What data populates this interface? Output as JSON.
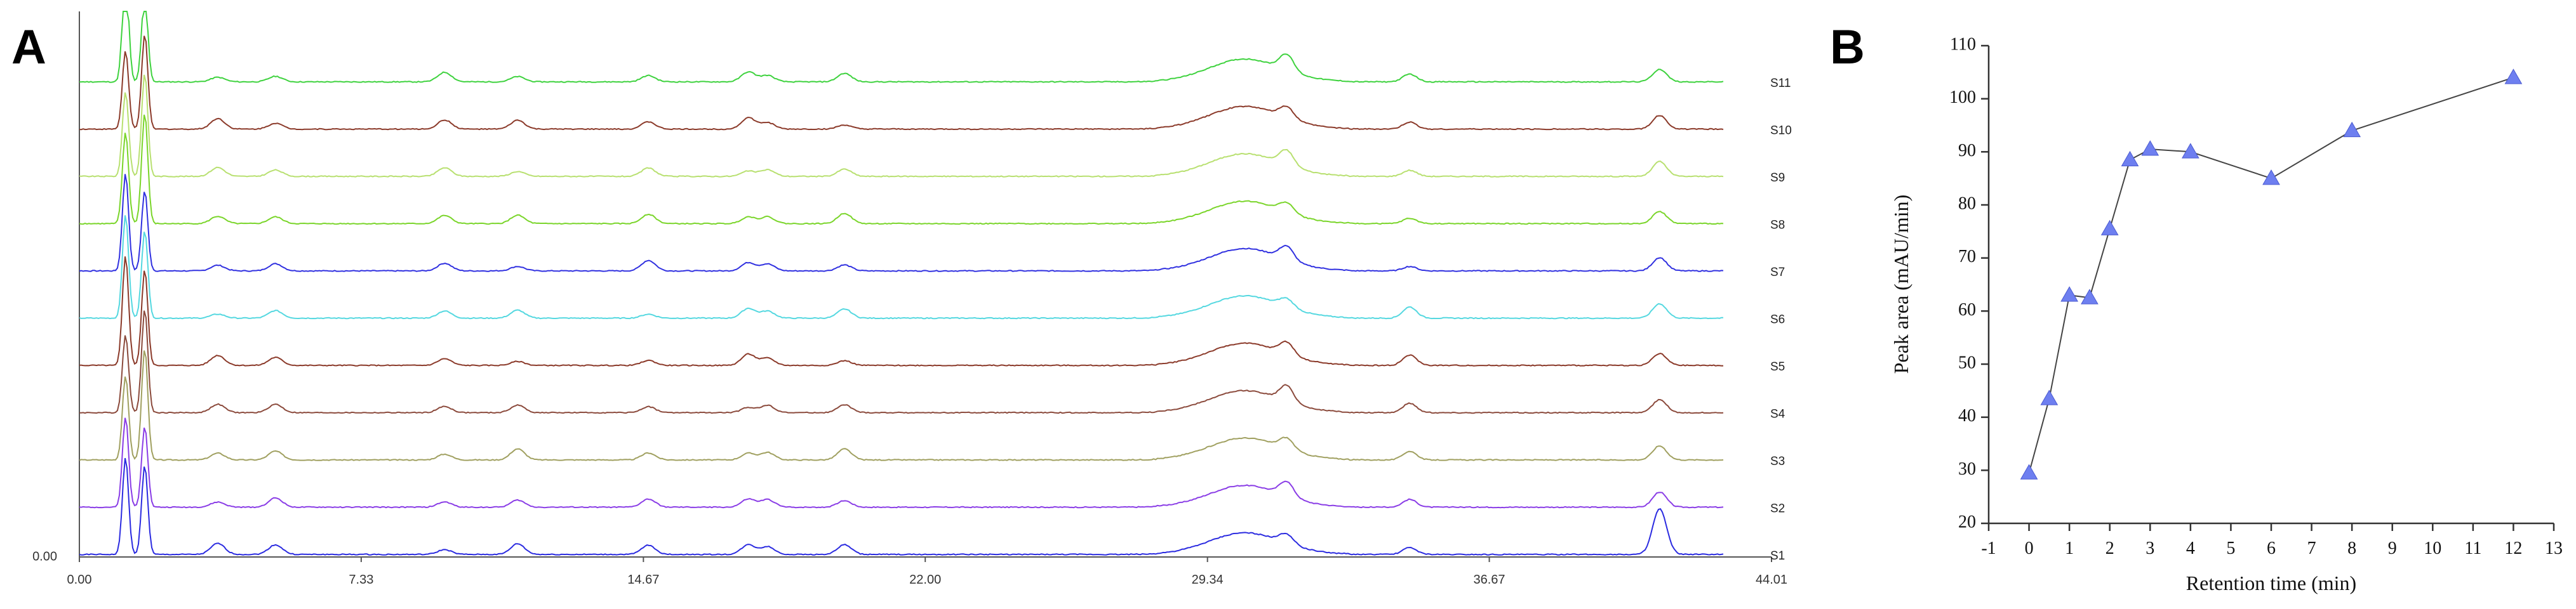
{
  "panels": [
    {
      "panel_label": "A",
      "chart_data": {
        "type": "line",
        "title": "",
        "xlabel": "",
        "ylabel": "",
        "x_ticks": [
          "0.00",
          "7.33",
          "14.67",
          "22.00",
          "29.34",
          "36.67",
          "44.01"
        ],
        "xlim": [
          0,
          44.01
        ],
        "y_tick_label": "0.00",
        "stacked": true,
        "series": [
          {
            "name": "S1",
            "color": "#2b2be0"
          },
          {
            "name": "S2",
            "color": "#8a3de6"
          },
          {
            "name": "S3",
            "color": "#a0a060"
          },
          {
            "name": "S4",
            "color": "#8b4a3c"
          },
          {
            "name": "S5",
            "color": "#8b3a2a"
          },
          {
            "name": "S6",
            "color": "#55d8e0"
          },
          {
            "name": "S7",
            "color": "#3030e0"
          },
          {
            "name": "S8",
            "color": "#7ad52a"
          },
          {
            "name": "S9",
            "color": "#b8e070"
          },
          {
            "name": "S10",
            "color": "#8b3a2a"
          },
          {
            "name": "S11",
            "color": "#3ed23e"
          }
        ],
        "major_peaks_min": [
          1.2,
          1.7,
          3.6,
          5.1,
          9.5,
          11.4,
          14.8,
          17.4,
          17.9,
          19.9,
          30.3,
          31.4,
          34.6,
          41.1
        ]
      }
    },
    {
      "panel_label": "B",
      "chart_data": {
        "type": "scatter",
        "title": "",
        "xlabel": "Retention time (min)",
        "ylabel": "Peak area (mAU/min)",
        "xlim": [
          -1,
          13
        ],
        "ylim": [
          20,
          110
        ],
        "x_ticks": [
          "-1",
          "0",
          "1",
          "2",
          "3",
          "4",
          "5",
          "6",
          "7",
          "8",
          "9",
          "10",
          "11",
          "12",
          "13"
        ],
        "y_ticks": [
          "20",
          "30",
          "40",
          "50",
          "60",
          "70",
          "80",
          "90",
          "100",
          "110"
        ],
        "marker": "triangle",
        "marker_color": "#6e7ff0",
        "line_color": "#444444",
        "series": [
          {
            "x": [
              0,
              0.5,
              1,
              1.5,
              2,
              2.5,
              3,
              4,
              6,
              8,
              12
            ],
            "y": [
              29.5,
              43.5,
              63,
              62.5,
              75.5,
              88.5,
              90.5,
              90,
              85,
              94,
              104
            ]
          }
        ]
      }
    }
  ]
}
